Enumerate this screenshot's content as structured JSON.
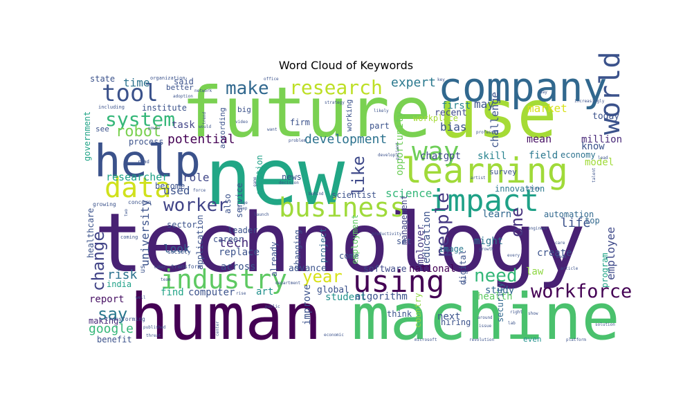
{
  "chart_data": {
    "type": "wordcloud",
    "title": "Word Cloud of Keywords",
    "words": [
      {
        "text": "technology",
        "color": "#482173"
      },
      {
        "text": "human",
        "color": "#440154"
      },
      {
        "text": "new",
        "color": "#21a685"
      },
      {
        "text": "future",
        "color": "#7ad151"
      },
      {
        "text": "machine",
        "color": "#4ac16d"
      },
      {
        "text": "use",
        "color": "#a5db36"
      },
      {
        "text": "company",
        "color": "#31688e"
      },
      {
        "text": "learning",
        "color": "#a0da39"
      },
      {
        "text": "help",
        "color": "#3b528b"
      },
      {
        "text": "business",
        "color": "#9fda3a"
      },
      {
        "text": "impact",
        "color": "#1fa187"
      },
      {
        "text": "using",
        "color": "#440154"
      },
      {
        "text": "data",
        "color": "#d0e11c"
      },
      {
        "text": "industry",
        "color": "#5ec962"
      },
      {
        "text": "world",
        "color": "#3b528b"
      },
      {
        "text": "tool",
        "color": "#3b528b"
      },
      {
        "text": "system",
        "color": "#35b779"
      },
      {
        "text": "way",
        "color": "#6ece58"
      },
      {
        "text": "workforce",
        "color": "#440154"
      },
      {
        "text": "research",
        "color": "#bddf26"
      },
      {
        "text": "make",
        "color": "#31688e"
      },
      {
        "text": "people",
        "color": "#443983"
      },
      {
        "text": "worker",
        "color": "#414487"
      },
      {
        "text": "need",
        "color": "#35b779"
      },
      {
        "text": "say",
        "color": "#2a788e"
      },
      {
        "text": "year",
        "color": "#d8e219"
      },
      {
        "text": "robot",
        "color": "#7ad151"
      },
      {
        "text": "change",
        "color": "#414487"
      },
      {
        "text": "like",
        "color": "#3e4989"
      },
      {
        "text": "one",
        "color": "#46337f"
      },
      {
        "text": "development",
        "color": "#2c728e"
      },
      {
        "text": "potential",
        "color": "#440154"
      },
      {
        "text": "market",
        "color": "#d8e219"
      },
      {
        "text": "expert",
        "color": "#2a788e"
      },
      {
        "text": "employee",
        "color": "#3e4989"
      },
      {
        "text": "risk",
        "color": "#2c728e"
      },
      {
        "text": "report",
        "color": "#471063"
      },
      {
        "text": "google",
        "color": "#35b779"
      },
      {
        "text": "tech",
        "color": "#472d7b"
      },
      {
        "text": "time",
        "color": "#2c728e"
      },
      {
        "text": "used",
        "color": "#3b528b"
      },
      {
        "text": "role",
        "color": "#404688"
      },
      {
        "text": "science",
        "color": "#35b779"
      },
      {
        "text": "life",
        "color": "#3b528b"
      },
      {
        "text": "university",
        "color": "#3b528b"
      },
      {
        "text": "researcher",
        "color": "#1fa187"
      },
      {
        "text": "look",
        "color": "#355f8d"
      },
      {
        "text": "chatgpt",
        "color": "#3e4989"
      },
      {
        "text": "skill",
        "color": "#26828e"
      },
      {
        "text": "field",
        "color": "#2a788e"
      },
      {
        "text": "task",
        "color": "#414487"
      },
      {
        "text": "may",
        "color": "#3b528b"
      },
      {
        "text": "today",
        "color": "#3b528b"
      },
      {
        "text": "mean",
        "color": "#471063"
      },
      {
        "text": "challenge",
        "color": "#3b528b"
      },
      {
        "text": "opportunity",
        "color": "#6ece58"
      },
      {
        "text": "million",
        "color": "#482878"
      },
      {
        "text": "model",
        "color": "#a0da39"
      },
      {
        "text": "know",
        "color": "#3b528b"
      },
      {
        "text": "economy",
        "color": "#2c728e"
      },
      {
        "text": "first",
        "color": "#26828e"
      },
      {
        "text": "workplace",
        "color": "#a5db36"
      },
      {
        "text": "recent",
        "color": "#3e4989"
      },
      {
        "text": "bias",
        "color": "#3b528b"
      },
      {
        "text": "automation",
        "color": "#31688e"
      },
      {
        "text": "innovation",
        "color": "#2a788e"
      },
      {
        "text": "learn",
        "color": "#31688e"
      },
      {
        "text": "education",
        "color": "#3b528b"
      },
      {
        "text": "employer",
        "color": "#443983"
      },
      {
        "text": "management",
        "color": "#414487"
      },
      {
        "text": "might",
        "color": "#2c728e"
      },
      {
        "text": "image",
        "color": "#2a788e"
      },
      {
        "text": "create",
        "color": "#3b528b"
      },
      {
        "text": "law",
        "color": "#8fd744"
      },
      {
        "text": "study",
        "color": "#31688e"
      },
      {
        "text": "health",
        "color": "#5ec962"
      },
      {
        "text": "national",
        "color": "#440154"
      },
      {
        "text": "software",
        "color": "#3e4989"
      },
      {
        "text": "advance",
        "color": "#3b528b"
      },
      {
        "text": "across",
        "color": "#3b528b"
      },
      {
        "text": "replace",
        "color": "#3b528b"
      },
      {
        "text": "leader",
        "color": "#3b528b"
      },
      {
        "text": "computer",
        "color": "#3b528b"
      },
      {
        "text": "art",
        "color": "#21918c"
      },
      {
        "text": "global",
        "color": "#3b528b"
      },
      {
        "text": "student",
        "color": "#21918c"
      },
      {
        "text": "algorithm",
        "color": "#3b528b"
      },
      {
        "text": "find",
        "color": "#20a386"
      },
      {
        "text": "india",
        "color": "#1fa187"
      },
      {
        "text": "making",
        "color": "#482878"
      },
      {
        "text": "benefit",
        "color": "#3b528b"
      },
      {
        "text": "think",
        "color": "#3b528b"
      },
      {
        "text": "next",
        "color": "#3b528b"
      },
      {
        "text": "hiring",
        "color": "#3b528b"
      },
      {
        "text": "security",
        "color": "#31688e"
      },
      {
        "text": "even",
        "color": "#21918c"
      },
      {
        "text": "program",
        "color": "#20a386"
      },
      {
        "text": "top",
        "color": "#31688e"
      },
      {
        "text": "career",
        "color": "#3b528b"
      },
      {
        "text": "service",
        "color": "#3b528b"
      },
      {
        "text": "also",
        "color": "#3b528b"
      },
      {
        "text": "question",
        "color": "#1fa187"
      },
      {
        "text": "news",
        "color": "#3b528b"
      },
      {
        "text": "scientist",
        "color": "#3b528b"
      },
      {
        "text": "already",
        "color": "#3b528b"
      },
      {
        "text": "changing",
        "color": "#3b528b"
      },
      {
        "text": "project",
        "color": "#31688e"
      },
      {
        "text": "improve",
        "color": "#3b528b"
      },
      {
        "text": "come",
        "color": "#3b528b"
      },
      {
        "text": "employment",
        "color": "#5ec962"
      },
      {
        "text": "set",
        "color": "#3b528b"
      },
      {
        "text": "country",
        "color": "#8fd744"
      },
      {
        "text": "digital",
        "color": "#3b528b"
      },
      {
        "text": "according",
        "color": "#3b528b"
      },
      {
        "text": "big",
        "color": "#3b528b"
      },
      {
        "text": "working",
        "color": "#3b528b"
      },
      {
        "text": "firm",
        "color": "#3b528b"
      },
      {
        "text": "part",
        "color": "#3b528b"
      },
      {
        "text": "process",
        "color": "#3b528b"
      },
      {
        "text": "institute",
        "color": "#3b528b"
      },
      {
        "text": "become",
        "color": "#3b528b"
      },
      {
        "text": "government",
        "color": "#20a386"
      },
      {
        "text": "healthcare",
        "color": "#3b528b"
      },
      {
        "text": "application",
        "color": "#3b528b"
      },
      {
        "text": "sector",
        "color": "#3b528b"
      },
      {
        "text": "state",
        "color": "#3b528b"
      },
      {
        "text": "said",
        "color": "#3b528b"
      },
      {
        "text": "better",
        "color": "#3b528b"
      },
      {
        "text": "see",
        "color": "#3b528b"
      },
      {
        "text": "survey",
        "color": "#3b528b"
      },
      {
        "text": "us",
        "color": "#3b528b"
      },
      {
        "text": "transforming",
        "color": "#3b528b"
      },
      {
        "text": "transform",
        "color": "#3b528b"
      },
      {
        "text": "society",
        "color": "#3b528b"
      },
      {
        "text": "concern",
        "color": "#3b528b"
      },
      {
        "text": "growing",
        "color": "#3b528b"
      },
      {
        "text": "coming",
        "color": "#3b528b"
      },
      {
        "text": "read",
        "color": "#3b528b"
      },
      {
        "text": "would",
        "color": "#3b528b"
      },
      {
        "text": "trend",
        "color": "#3b528b"
      },
      {
        "text": "power",
        "color": "#3b528b"
      },
      {
        "text": "including",
        "color": "#3b528b"
      },
      {
        "text": "organization",
        "color": "#3b528b"
      },
      {
        "text": "adoption",
        "color": "#3b528b"
      },
      {
        "text": "network",
        "color": "#3b528b"
      },
      {
        "text": "office",
        "color": "#3b528b"
      },
      {
        "text": "strategy",
        "color": "#3b528b"
      },
      {
        "text": "likely",
        "color": "#3b528b"
      },
      {
        "text": "want",
        "color": "#3b528b"
      },
      {
        "text": "video",
        "color": "#3b528b"
      },
      {
        "text": "problem",
        "color": "#3b528b"
      },
      {
        "text": "game",
        "color": "#3b528b"
      },
      {
        "text": "age",
        "color": "#3b528b"
      },
      {
        "text": "deep",
        "color": "#3b528b"
      },
      {
        "text": "launch",
        "color": "#3b528b"
      },
      {
        "text": "decision",
        "color": "#3b528b"
      },
      {
        "text": "behind",
        "color": "#3b528b"
      },
      {
        "text": "productivity",
        "color": "#3b528b"
      },
      {
        "text": "develop",
        "color": "#3b528b"
      },
      {
        "text": "patient",
        "color": "#3b528b"
      },
      {
        "text": "artist",
        "color": "#3b528b"
      },
      {
        "text": "growth",
        "color": "#3b528b"
      },
      {
        "text": "around",
        "color": "#3b528b"
      },
      {
        "text": "issue",
        "color": "#3b528b"
      },
      {
        "text": "right",
        "color": "#3b528b"
      },
      {
        "text": "lab",
        "color": "#3b528b"
      },
      {
        "text": "show",
        "color": "#3b528b"
      },
      {
        "text": "every",
        "color": "#3b528b"
      },
      {
        "text": "made",
        "color": "#3b528b"
      },
      {
        "text": "engineer",
        "color": "#3b528b"
      },
      {
        "text": "care",
        "color": "#3b528b"
      },
      {
        "text": "article",
        "color": "#3b528b"
      },
      {
        "text": "solution",
        "color": "#3b528b"
      },
      {
        "text": "platform",
        "color": "#3b528b"
      },
      {
        "text": "revolution",
        "color": "#3b528b"
      },
      {
        "text": "microsoft",
        "color": "#3b528b"
      },
      {
        "text": "economic",
        "color": "#3b528b"
      },
      {
        "text": "public",
        "color": "#3b528b"
      },
      {
        "text": "department",
        "color": "#3b528b"
      },
      {
        "text": "rise",
        "color": "#3b528b"
      },
      {
        "text": "center",
        "color": "#3b528b"
      },
      {
        "text": "published",
        "color": "#3b528b"
      },
      {
        "text": "threat",
        "color": "#3b528b"
      },
      {
        "text": "team",
        "color": "#3b528b"
      },
      {
        "text": "labor",
        "color": "#3b528b"
      },
      {
        "text": "well",
        "color": "#3b528b"
      },
      {
        "text": "force",
        "color": "#3b528b"
      },
      {
        "text": "two",
        "color": "#3b528b"
      },
      {
        "text": "china",
        "color": "#3b528b"
      },
      {
        "text": "day",
        "color": "#3b528b"
      },
      {
        "text": "lead",
        "color": "#3b528b"
      },
      {
        "text": "talent",
        "color": "#3b528b"
      },
      {
        "text": "increasingly",
        "color": "#3b528b"
      },
      {
        "text": "professor",
        "color": "#3b528b"
      },
      {
        "text": "key",
        "color": "#3b528b"
      },
      {
        "text": "fnr",
        "color": "#3b528b"
      },
      {
        "text": "robotics",
        "color": "#3b528b"
      }
    ]
  }
}
